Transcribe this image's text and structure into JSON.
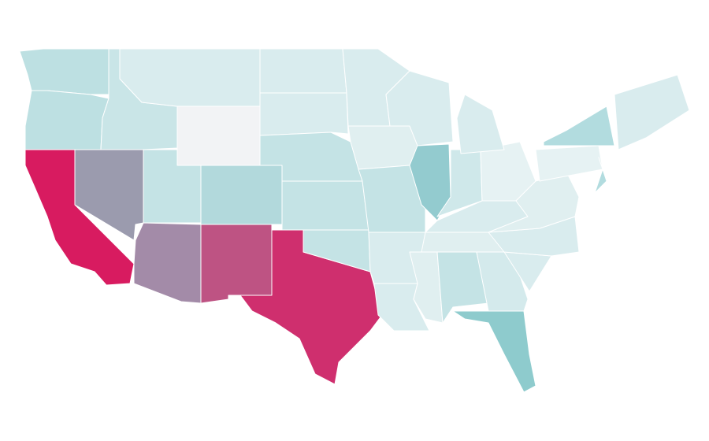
{
  "map": {
    "background": "#ffffff",
    "border": "#ffffff",
    "fills": [
      "#bde0e2",
      "#bde0e2",
      "#d81b60",
      "#9b9bae",
      "#c9e5e7",
      "#d9ecee",
      "#f2f3f5",
      "#c4e3e5",
      "#b2d9dc",
      "#a38ba8",
      "#be5383",
      "#cf2f6e",
      "#d9ecee",
      "#d9ecee",
      "#c4e3e5",
      "#c4e3e5",
      "#c4e3e5",
      "#d9ecee",
      "#e0eff0",
      "#c4e3e5",
      "#d9ecee",
      "#d9ecee",
      "#93cbcf",
      "#d9ecee",
      "#cfe8ea",
      "#e6f2f3",
      "#d9ecee",
      "#d9ecee",
      "#e0eff0",
      "#e0eff0",
      "#c4e3e5",
      "#8ecbcd",
      "#d4eaec",
      "#d9ecee",
      "#d9ecee",
      "#e0eff0",
      "#e6f2f3",
      "#b2dcdf",
      "#b2dcdf",
      "#d9ecee"
    ]
  }
}
